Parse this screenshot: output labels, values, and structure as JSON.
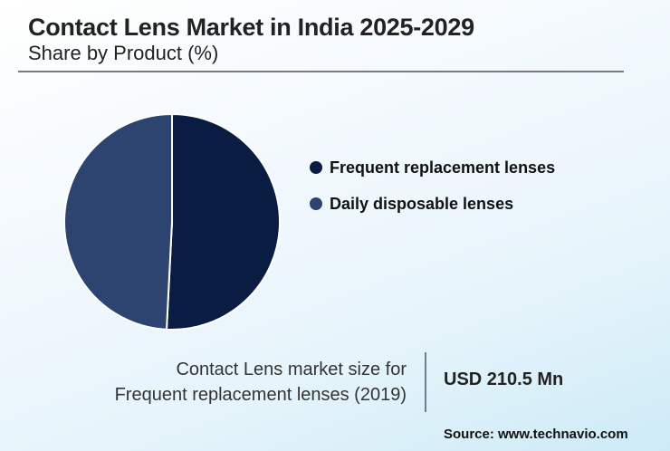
{
  "header": {
    "title": "Contact Lens Market in India 2025-2029",
    "subtitle": "Share by Product (%)"
  },
  "legend": {
    "items": [
      {
        "label": "Frequent replacement lenses",
        "color": "#0a1c42"
      },
      {
        "label": "Daily disposable lenses",
        "color": "#2d4470"
      }
    ]
  },
  "stat": {
    "label_line1": "Contact Lens market size for",
    "label_line2": "Frequent replacement lenses (2019)",
    "value": "USD 210.5 Mn"
  },
  "source": "Source: www.technavio.com",
  "chart_data": {
    "type": "pie",
    "title": "Contact Lens Market in India 2025-2029",
    "subtitle": "Share by Product (%)",
    "categories": [
      "Frequent replacement lenses",
      "Daily disposable lenses"
    ],
    "values": [
      50.8,
      49.2
    ],
    "colors": [
      "#0a1c42",
      "#2d4470"
    ],
    "start_angle": "12 o'clock, clockwise",
    "legend_position": "right",
    "annotation": "Contact Lens market size for Frequent replacement lenses (2019): USD 210.5 Mn"
  }
}
